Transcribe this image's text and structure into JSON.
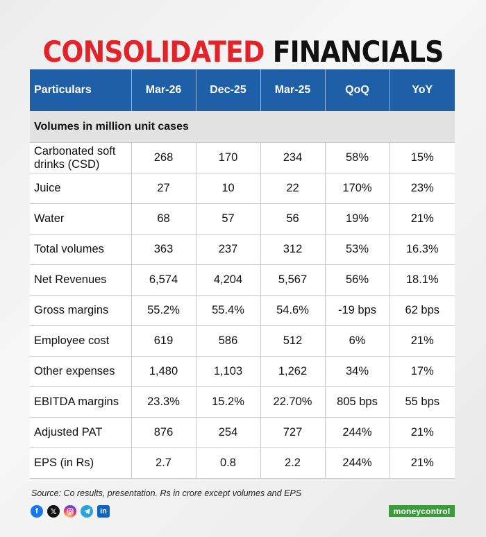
{
  "title": {
    "part1": "CONSOLIDATED",
    "part2": "FINANCIALS"
  },
  "table": {
    "headers": [
      "Particulars",
      "Mar-26",
      "Dec-25",
      "Mar-25",
      "QoQ",
      "YoY"
    ],
    "section_label": "Volumes in million unit cases",
    "rows": [
      [
        "Carbonated soft drinks (CSD)",
        "268",
        "170",
        "234",
        "58%",
        "15%"
      ],
      [
        "Juice",
        "27",
        "10",
        "22",
        "170%",
        "23%"
      ],
      [
        "Water",
        "68",
        "57",
        "56",
        "19%",
        "21%"
      ],
      [
        "Total volumes",
        "363",
        "237",
        "312",
        "53%",
        "16.3%"
      ],
      [
        "Net Revenues",
        "6,574",
        "4,204",
        "5,567",
        "56%",
        "18.1%"
      ],
      [
        "Gross margins",
        "55.2%",
        "55.4%",
        "54.6%",
        "-19 bps",
        "62 bps"
      ],
      [
        "Employee cost",
        "619",
        "586",
        "512",
        "6%",
        "21%"
      ],
      [
        "Other expenses",
        "1,480",
        "1,103",
        "1,262",
        "34%",
        "17%"
      ],
      [
        "EBITDA margins",
        "23.3%",
        "15.2%",
        "22.70%",
        "805 bps",
        "55 bps"
      ],
      [
        "Adjusted PAT",
        "876",
        "254",
        "727",
        "244%",
        "21%"
      ],
      [
        "EPS (in Rs)",
        "2.7",
        "0.8",
        "2.2",
        "244%",
        "21%"
      ]
    ]
  },
  "source": "Source: Co results, presentation. Rs in crore except volumes and EPS",
  "social_icons": [
    "facebook-icon",
    "x-icon",
    "instagram-icon",
    "telegram-icon",
    "linkedin-icon"
  ],
  "logo_text": "moneycontrol",
  "colors": {
    "title_red": "#e3232a",
    "header_blue": "#1f5fa8",
    "section_gray": "#e2e2e2",
    "logo_green": "#3c9b3c"
  }
}
